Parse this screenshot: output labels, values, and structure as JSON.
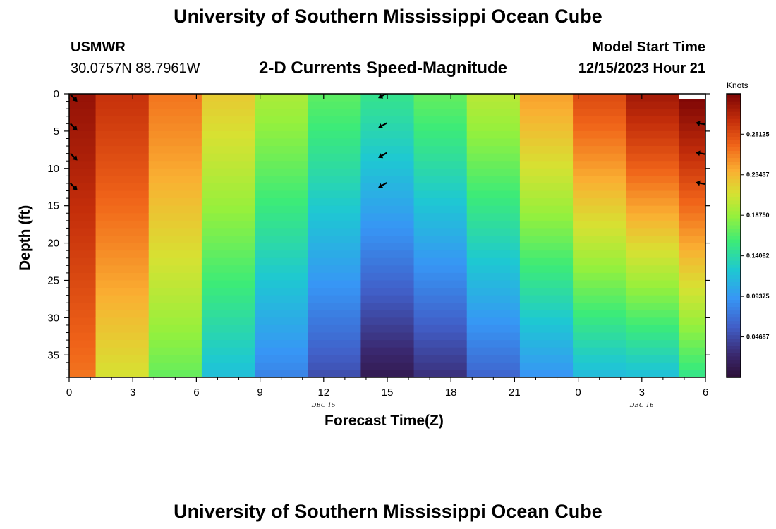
{
  "chart_data": {
    "type": "heatmap",
    "title": "University of Southern Mississippi Ocean Cube",
    "station": "USMWR",
    "coordinates": "30.0757N  88.7961W",
    "subtitle": "2-D Currents Speed-Magnitude",
    "model_start_label": "Model Start Time",
    "model_start_value": "12/15/2023 Hour 21",
    "xlabel": "Forecast Time(Z)",
    "ylabel": "Depth (ft)",
    "x_range_hours": [
      0,
      30
    ],
    "x_ticks": [
      {
        "hour": 0,
        "label": "0"
      },
      {
        "hour": 3,
        "label": "3"
      },
      {
        "hour": 6,
        "label": "6"
      },
      {
        "hour": 9,
        "label": "9"
      },
      {
        "hour": 12,
        "label": "12"
      },
      {
        "hour": 15,
        "label": "15"
      },
      {
        "hour": 18,
        "label": "18"
      },
      {
        "hour": 21,
        "label": "21"
      },
      {
        "hour": 24,
        "label": "0"
      },
      {
        "hour": 27,
        "label": "3"
      },
      {
        "hour": 30,
        "label": "6"
      }
    ],
    "date_labels": [
      {
        "hour": 12,
        "label": "DEC 15"
      },
      {
        "hour": 27,
        "label": "DEC 16"
      }
    ],
    "y_range_ft": [
      0,
      38
    ],
    "y_ticks": [
      0,
      5,
      10,
      15,
      20,
      25,
      30,
      35
    ],
    "colorbar": {
      "title": "Knots",
      "min": 0.0,
      "max": 0.328,
      "ticks": [
        "0.28125",
        "0.23437",
        "0.18750",
        "0.14062",
        "0.09375",
        "0.04687"
      ],
      "tick_values": [
        0.28125,
        0.234375,
        0.1875,
        0.140625,
        0.09375,
        0.046875
      ]
    },
    "columns": [
      {
        "t_start": 0.0,
        "t_end": 1.25,
        "surface": 0.318,
        "bottom": 0.262
      },
      {
        "t_start": 1.25,
        "t_end": 3.75,
        "surface": 0.296,
        "bottom": 0.212
      },
      {
        "t_start": 3.75,
        "t_end": 6.25,
        "surface": 0.262,
        "bottom": 0.17
      },
      {
        "t_start": 6.25,
        "t_end": 8.75,
        "surface": 0.225,
        "bottom": 0.118
      },
      {
        "t_start": 8.75,
        "t_end": 11.25,
        "surface": 0.195,
        "bottom": 0.08
      },
      {
        "t_start": 11.25,
        "t_end": 13.75,
        "surface": 0.168,
        "bottom": 0.048
      },
      {
        "t_start": 13.75,
        "t_end": 16.25,
        "surface": 0.15,
        "bottom": 0.012
      },
      {
        "t_start": 16.25,
        "t_end": 18.75,
        "surface": 0.17,
        "bottom": 0.03
      },
      {
        "t_start": 18.75,
        "t_end": 21.25,
        "surface": 0.2,
        "bottom": 0.062
      },
      {
        "t_start": 21.25,
        "t_end": 23.75,
        "surface": 0.245,
        "bottom": 0.09
      },
      {
        "t_start": 23.75,
        "t_end": 26.25,
        "surface": 0.282,
        "bottom": 0.115
      },
      {
        "t_start": 26.25,
        "t_end": 28.75,
        "surface": 0.312,
        "bottom": 0.118
      },
      {
        "t_start": 28.75,
        "t_end": 30.0,
        "surface": 0.328,
        "bottom": 0.15
      }
    ],
    "vectors": [
      {
        "hour": 0.2,
        "depth": 0.5,
        "direction": "southeast"
      },
      {
        "hour": 0.2,
        "depth": 4.4,
        "direction": "southeast"
      },
      {
        "hour": 0.2,
        "depth": 8.4,
        "direction": "southeast"
      },
      {
        "hour": 0.2,
        "depth": 12.4,
        "direction": "southeast"
      },
      {
        "hour": 14.8,
        "depth": 0.2,
        "direction": "southwest"
      },
      {
        "hour": 14.8,
        "depth": 4.2,
        "direction": "southwest"
      },
      {
        "hour": 14.8,
        "depth": 8.2,
        "direction": "southwest"
      },
      {
        "hour": 14.8,
        "depth": 12.2,
        "direction": "southwest"
      },
      {
        "hour": 29.8,
        "depth": 4.0,
        "direction": "west"
      },
      {
        "hour": 29.8,
        "depth": 8.0,
        "direction": "west"
      },
      {
        "hour": 29.8,
        "depth": 12.0,
        "direction": "west"
      }
    ],
    "footer_title": "University of Southern Mississippi Ocean Cube"
  }
}
